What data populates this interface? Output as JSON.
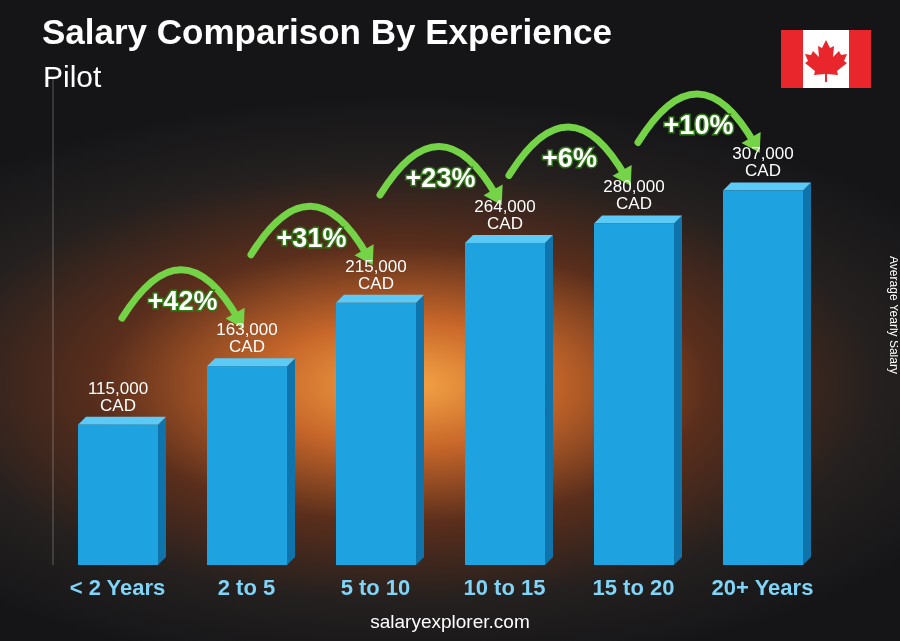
{
  "chart_data": {
    "type": "bar",
    "title": "Salary Comparison By Experience",
    "subtitle": "Pilot",
    "categories": [
      "< 2 Years",
      "2 to 5",
      "5 to 10",
      "10 to 15",
      "15 to 20",
      "20+ Years"
    ],
    "values": [
      115000,
      163000,
      215000,
      264000,
      280000,
      307000
    ],
    "value_labels": [
      "115,000 CAD",
      "163,000 CAD",
      "215,000 CAD",
      "264,000 CAD",
      "280,000 CAD",
      "307,000 CAD"
    ],
    "data_labels": true,
    "annotations": [
      "+42%",
      "+31%",
      "+23%",
      "+6%",
      "+10%"
    ],
    "ylabel": "Average Yearly Salary",
    "source": "salaryexplorer.com",
    "color": "#1ea2e0",
    "ylim": [
      0,
      400000
    ],
    "grid": false,
    "tick_labels": "x"
  }
}
